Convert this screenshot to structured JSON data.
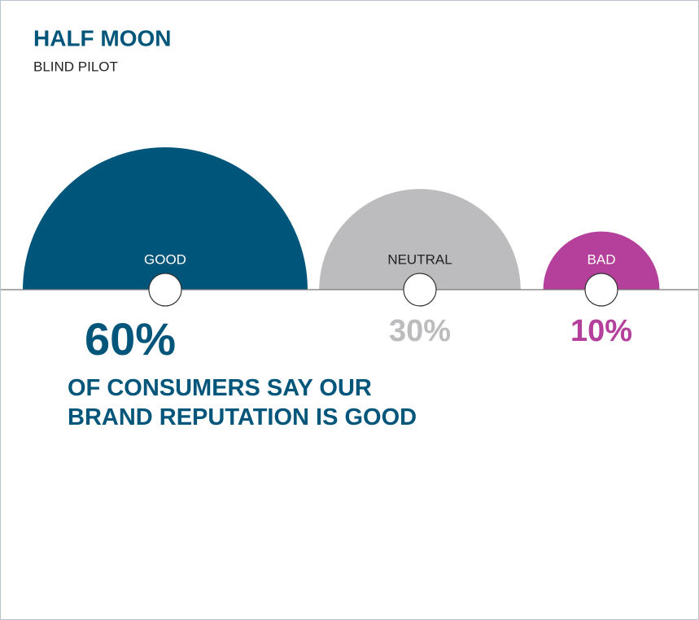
{
  "chart_data": {
    "type": "half-moon",
    "title": "HALF MOON",
    "subtitle": "BLIND PILOT",
    "categories": [
      "GOOD",
      "NEUTRAL",
      "BAD"
    ],
    "values": [
      60,
      30,
      10
    ],
    "value_labels": [
      "60%",
      "30%",
      "10%"
    ],
    "colors": [
      "#00567a",
      "#bcbcbe",
      "#b5409b"
    ],
    "annotation": "OF CONSUMERS SAY OUR BRAND REPUTATION IS GOOD"
  }
}
